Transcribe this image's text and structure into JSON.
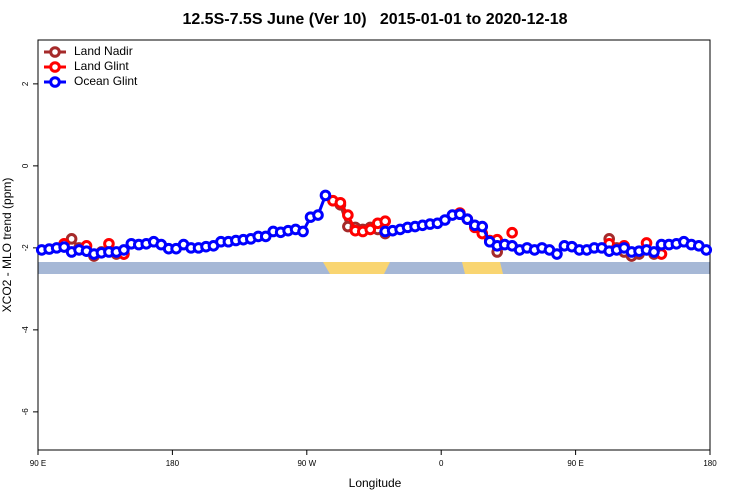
{
  "chart_data": {
    "type": "line",
    "title": "12.5S-7.5S June (Ver 10)   2015-01-01 to 2020-12-18",
    "xlabel": "Longitude",
    "ylabel": "XCO2 - MLO trend (ppm)",
    "x": [
      92.5,
      97.5,
      102.5,
      107.5,
      112.5,
      117.5,
      122.5,
      127.5,
      132.5,
      137.5,
      142.5,
      147.5,
      152.5,
      157.5,
      162.5,
      167.5,
      172.5,
      177.5,
      182.5,
      187.5,
      192.5,
      197.5,
      202.5,
      207.5,
      212.5,
      217.5,
      222.5,
      227.5,
      232.5,
      237.5,
      242.5,
      247.5,
      252.5,
      257.5,
      262.5,
      267.5,
      272.5,
      277.5,
      282.5,
      287.5,
      292.5,
      297.5,
      302.5,
      307.5,
      312.5,
      317.5,
      322.5,
      327.5,
      332.5,
      337.5,
      342.5,
      347.5,
      352.5,
      357.5,
      362.5,
      367.5,
      372.5,
      377.5,
      382.5,
      387.5,
      392.5,
      397.5,
      402.5,
      407.5,
      412.5,
      417.5,
      422.5,
      427.5,
      432.5,
      437.5,
      442.5,
      447.5,
      452.5,
      457.5,
      462.5,
      467.5,
      472.5,
      477.5,
      482.5,
      487.5,
      492.5,
      497.5,
      502.5,
      507.5,
      512.5,
      517.5,
      522.5,
      527.5,
      532.5,
      537.5
    ],
    "series": [
      {
        "name": "Land Nadir",
        "color": "#a52a2a",
        "values": [
          null,
          null,
          null,
          null,
          -1.78,
          -2.0,
          -2.05,
          -2.2,
          -2.1,
          null,
          -2.15,
          -2.15,
          null,
          null,
          null,
          null,
          null,
          null,
          null,
          null,
          null,
          null,
          null,
          null,
          null,
          null,
          null,
          null,
          null,
          null,
          null,
          null,
          null,
          null,
          null,
          null,
          null,
          null,
          null,
          null,
          -0.95,
          -1.48,
          -1.5,
          -1.55,
          -1.5,
          -1.55,
          -1.65,
          null,
          null,
          null,
          null,
          null,
          null,
          null,
          null,
          null,
          null,
          null,
          null,
          null,
          null,
          -2.1,
          null,
          null,
          null,
          null,
          null,
          null,
          null,
          null,
          null,
          null,
          null,
          null,
          null,
          null,
          -1.78,
          -2.0,
          -2.1,
          -2.2,
          -2.15,
          null,
          -2.15,
          null,
          null,
          null,
          null,
          null,
          null,
          null
        ]
      },
      {
        "name": "Land Glint",
        "color": "#ff0000",
        "values": [
          null,
          null,
          null,
          -1.9,
          null,
          null,
          -1.95,
          null,
          null,
          -1.9,
          null,
          -2.15,
          null,
          null,
          null,
          null,
          null,
          null,
          null,
          null,
          null,
          null,
          null,
          null,
          null,
          null,
          null,
          null,
          null,
          null,
          null,
          null,
          null,
          null,
          null,
          null,
          null,
          null,
          null,
          -0.85,
          -0.9,
          -1.2,
          -1.58,
          -1.6,
          -1.55,
          -1.4,
          -1.35,
          null,
          null,
          null,
          null,
          null,
          null,
          null,
          null,
          null,
          -1.15,
          -1.3,
          -1.5,
          -1.65,
          -1.82,
          -1.8,
          null,
          -1.63,
          null,
          null,
          null,
          null,
          null,
          null,
          null,
          null,
          null,
          null,
          null,
          null,
          -1.9,
          null,
          -1.95,
          null,
          null,
          -1.88,
          null,
          -2.15,
          null,
          null,
          null,
          null,
          null,
          null
        ]
      },
      {
        "name": "Ocean Glint",
        "color": "#0000ff",
        "values": [
          -2.05,
          -2.03,
          -2.0,
          -1.98,
          -2.1,
          -2.05,
          -2.08,
          -2.15,
          -2.12,
          -2.1,
          -2.1,
          -2.05,
          -1.9,
          -1.92,
          -1.9,
          -1.85,
          -1.92,
          -2.02,
          -2.02,
          -1.92,
          -2.0,
          -2.0,
          -1.97,
          -1.95,
          -1.85,
          -1.85,
          -1.82,
          -1.8,
          -1.78,
          -1.72,
          -1.72,
          -1.6,
          -1.62,
          -1.58,
          -1.55,
          -1.6,
          -1.25,
          -1.2,
          -0.72,
          null,
          null,
          null,
          null,
          null,
          null,
          null,
          -1.6,
          -1.58,
          -1.55,
          -1.5,
          -1.48,
          -1.45,
          -1.42,
          -1.4,
          -1.32,
          -1.2,
          -1.18,
          -1.3,
          -1.45,
          -1.48,
          -1.85,
          -1.95,
          -1.92,
          -1.95,
          -2.05,
          -2.0,
          -2.05,
          -2.0,
          -2.05,
          -2.15,
          -1.95,
          -1.97,
          -2.05,
          -2.05,
          -2.0,
          -2.0,
          -2.08,
          -2.05,
          -2.0,
          -2.1,
          -2.08,
          -2.05,
          -2.1,
          -1.92,
          -1.92,
          -1.9,
          -1.85,
          -1.92,
          -1.95,
          -2.05
        ]
      }
    ],
    "xlim": [
      90,
      540
    ],
    "xticks": [
      {
        "value": 90,
        "label": "90 E"
      },
      180,
      {
        "value": 270,
        "label": "90 W"
      },
      {
        "value": 360,
        "label": "0"
      },
      {
        "value": 450,
        "label": "90 E"
      },
      {
        "value": 540,
        "label": "180"
      }
    ],
    "ylim": [
      -6.93,
      3.07
    ],
    "yticks": [
      -6,
      -4,
      -2,
      0,
      2
    ],
    "legend": "top-left"
  }
}
